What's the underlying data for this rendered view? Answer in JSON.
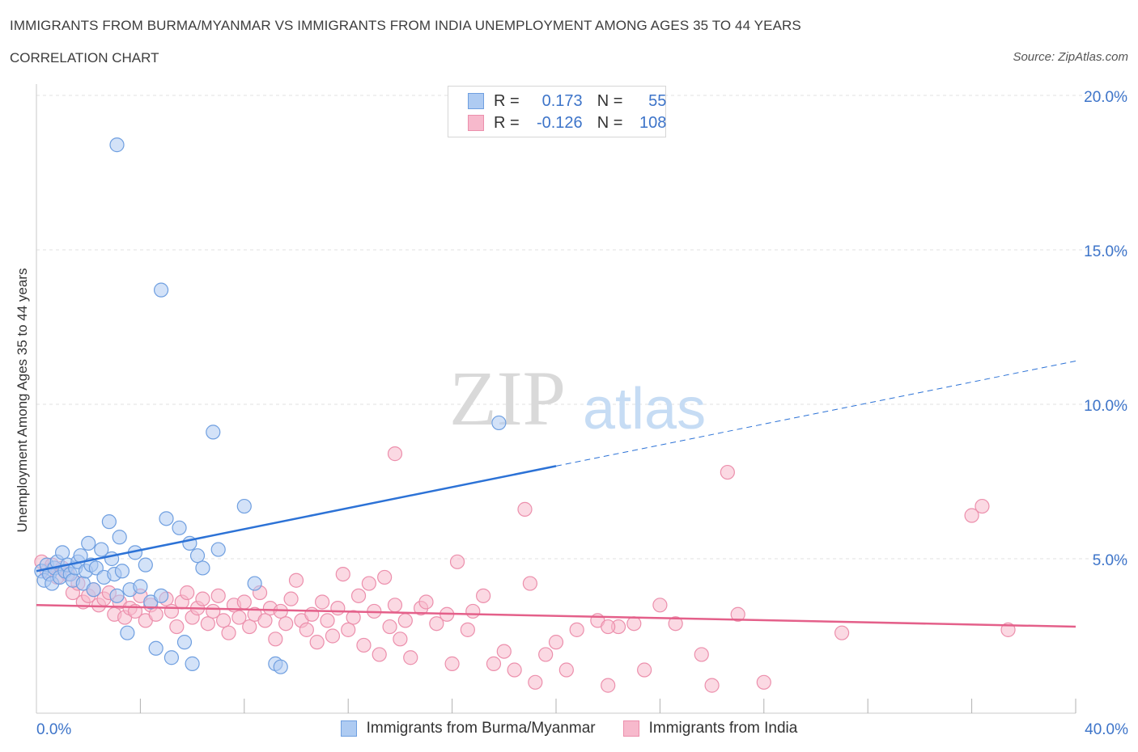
{
  "header": {
    "title": "IMMIGRANTS FROM BURMA/MYANMAR VS IMMIGRANTS FROM INDIA UNEMPLOYMENT AMONG AGES 35 TO 44 YEARS",
    "subtitle": "CORRELATION CHART",
    "source": "Source: ZipAtlas.com"
  },
  "watermark": {
    "zip": "ZIP",
    "atlas": "atlas"
  },
  "legend": {
    "r_label": "R =",
    "n_label": "N =",
    "rows": [
      {
        "r": "0.173",
        "n": "55"
      },
      {
        "r": "-0.126",
        "n": "108"
      }
    ]
  },
  "colors": {
    "blue_fill": "#aecbf2",
    "blue_stroke": "#6f9fe0",
    "blue_line": "#2c72d6",
    "pink_fill": "#f7b9cc",
    "pink_stroke": "#ec8fac",
    "pink_line": "#e4608a",
    "axis_label": "#3d74c9",
    "grid": "#e2e2e2"
  },
  "chart_data": {
    "type": "scatter",
    "title": "IMMIGRANTS FROM BURMA/MYANMAR VS IMMIGRANTS FROM INDIA UNEMPLOYMENT AMONG AGES 35 TO 44 YEARS",
    "xlabel": "",
    "ylabel": "Unemployment Among Ages 35 to 44 years",
    "xlim": [
      0,
      40
    ],
    "ylim": [
      0,
      20
    ],
    "x_tick_labels": [
      "0.0%",
      "40.0%"
    ],
    "y_ticks": [
      5,
      10,
      15,
      20
    ],
    "y_tick_labels": [
      "5.0%",
      "10.0%",
      "15.0%",
      "20.0%"
    ],
    "grid": true,
    "legend_position": "top-center",
    "series": [
      {
        "name": "Immigrants from Burma/Myanmar",
        "color": "blue",
        "R": 0.173,
        "N": 55,
        "trend": {
          "x": [
            0,
            20
          ],
          "y": [
            4.6,
            8.0
          ],
          "dashed_to": [
            40,
            11.4
          ]
        },
        "points": [
          [
            0.2,
            4.6
          ],
          [
            0.3,
            4.3
          ],
          [
            0.4,
            4.8
          ],
          [
            0.5,
            4.5
          ],
          [
            0.6,
            4.2
          ],
          [
            0.7,
            4.7
          ],
          [
            0.8,
            4.9
          ],
          [
            0.9,
            4.4
          ],
          [
            1.0,
            5.2
          ],
          [
            1.1,
            4.6
          ],
          [
            1.2,
            4.8
          ],
          [
            1.3,
            4.5
          ],
          [
            1.4,
            4.3
          ],
          [
            1.5,
            4.7
          ],
          [
            1.6,
            4.9
          ],
          [
            1.7,
            5.1
          ],
          [
            1.8,
            4.2
          ],
          [
            1.9,
            4.6
          ],
          [
            2.0,
            5.5
          ],
          [
            2.1,
            4.8
          ],
          [
            2.2,
            4.0
          ],
          [
            2.3,
            4.7
          ],
          [
            2.5,
            5.3
          ],
          [
            2.6,
            4.4
          ],
          [
            2.8,
            6.2
          ],
          [
            2.9,
            5.0
          ],
          [
            3.0,
            4.5
          ],
          [
            3.1,
            3.8
          ],
          [
            3.2,
            5.7
          ],
          [
            3.3,
            4.6
          ],
          [
            3.5,
            2.6
          ],
          [
            3.6,
            4.0
          ],
          [
            3.8,
            5.2
          ],
          [
            4.0,
            4.1
          ],
          [
            4.2,
            4.8
          ],
          [
            4.4,
            3.6
          ],
          [
            4.6,
            2.1
          ],
          [
            4.8,
            3.8
          ],
          [
            5.0,
            6.3
          ],
          [
            5.2,
            1.8
          ],
          [
            5.5,
            6.0
          ],
          [
            5.7,
            2.3
          ],
          [
            5.9,
            5.5
          ],
          [
            6.0,
            1.6
          ],
          [
            6.2,
            5.1
          ],
          [
            6.4,
            4.7
          ],
          [
            6.8,
            9.1
          ],
          [
            7.0,
            5.3
          ],
          [
            8.0,
            6.7
          ],
          [
            8.4,
            4.2
          ],
          [
            9.2,
            1.6
          ],
          [
            9.4,
            1.5
          ],
          [
            17.8,
            9.4
          ],
          [
            3.1,
            18.4
          ],
          [
            4.8,
            13.7
          ]
        ]
      },
      {
        "name": "Immigrants from India",
        "color": "pink",
        "R": -0.126,
        "N": 108,
        "trend": {
          "x": [
            0,
            40
          ],
          "y": [
            3.5,
            2.8
          ]
        },
        "points": [
          [
            0.2,
            4.9
          ],
          [
            0.4,
            4.6
          ],
          [
            0.6,
            4.8
          ],
          [
            0.8,
            4.4
          ],
          [
            1.0,
            4.7
          ],
          [
            1.2,
            4.5
          ],
          [
            1.4,
            3.9
          ],
          [
            1.6,
            4.2
          ],
          [
            1.8,
            3.6
          ],
          [
            2.0,
            3.8
          ],
          [
            2.2,
            4.0
          ],
          [
            2.4,
            3.5
          ],
          [
            2.6,
            3.7
          ],
          [
            2.8,
            3.9
          ],
          [
            3.0,
            3.2
          ],
          [
            3.2,
            3.6
          ],
          [
            3.4,
            3.1
          ],
          [
            3.6,
            3.4
          ],
          [
            3.8,
            3.3
          ],
          [
            4.0,
            3.8
          ],
          [
            4.2,
            3.0
          ],
          [
            4.4,
            3.5
          ],
          [
            4.6,
            3.2
          ],
          [
            5.0,
            3.7
          ],
          [
            5.2,
            3.3
          ],
          [
            5.4,
            2.8
          ],
          [
            5.6,
            3.6
          ],
          [
            5.8,
            3.9
          ],
          [
            6.0,
            3.1
          ],
          [
            6.2,
            3.4
          ],
          [
            6.4,
            3.7
          ],
          [
            6.6,
            2.9
          ],
          [
            6.8,
            3.3
          ],
          [
            7.0,
            3.8
          ],
          [
            7.2,
            3.0
          ],
          [
            7.4,
            2.6
          ],
          [
            7.6,
            3.5
          ],
          [
            7.8,
            3.1
          ],
          [
            8.0,
            3.6
          ],
          [
            8.2,
            2.8
          ],
          [
            8.4,
            3.2
          ],
          [
            8.6,
            3.9
          ],
          [
            8.8,
            3.0
          ],
          [
            9.0,
            3.4
          ],
          [
            9.2,
            2.4
          ],
          [
            9.4,
            3.3
          ],
          [
            9.6,
            2.9
          ],
          [
            9.8,
            3.7
          ],
          [
            10.0,
            4.3
          ],
          [
            10.2,
            3.0
          ],
          [
            10.4,
            2.7
          ],
          [
            10.6,
            3.2
          ],
          [
            10.8,
            2.3
          ],
          [
            11.0,
            3.6
          ],
          [
            11.2,
            3.0
          ],
          [
            11.4,
            2.5
          ],
          [
            11.6,
            3.4
          ],
          [
            11.8,
            4.5
          ],
          [
            12.0,
            2.7
          ],
          [
            12.2,
            3.1
          ],
          [
            12.4,
            3.8
          ],
          [
            12.6,
            2.2
          ],
          [
            12.8,
            4.2
          ],
          [
            13.0,
            3.3
          ],
          [
            13.2,
            1.9
          ],
          [
            13.4,
            4.4
          ],
          [
            13.6,
            2.8
          ],
          [
            13.8,
            3.5
          ],
          [
            14.0,
            2.4
          ],
          [
            14.2,
            3.0
          ],
          [
            14.4,
            1.8
          ],
          [
            14.8,
            3.4
          ],
          [
            15.0,
            3.6
          ],
          [
            15.4,
            2.9
          ],
          [
            15.8,
            3.2
          ],
          [
            16.0,
            1.6
          ],
          [
            16.2,
            4.9
          ],
          [
            16.6,
            2.7
          ],
          [
            16.8,
            3.3
          ],
          [
            17.2,
            3.8
          ],
          [
            17.6,
            1.6
          ],
          [
            18.0,
            2.0
          ],
          [
            18.4,
            1.4
          ],
          [
            18.8,
            6.6
          ],
          [
            19.0,
            4.2
          ],
          [
            19.2,
            1.0
          ],
          [
            19.6,
            1.9
          ],
          [
            20.0,
            2.3
          ],
          [
            20.4,
            1.4
          ],
          [
            20.8,
            2.7
          ],
          [
            21.6,
            3.0
          ],
          [
            22.0,
            0.9
          ],
          [
            22.4,
            2.8
          ],
          [
            23.0,
            2.9
          ],
          [
            23.4,
            1.4
          ],
          [
            24.0,
            3.5
          ],
          [
            24.6,
            2.9
          ],
          [
            25.6,
            1.9
          ],
          [
            26.0,
            0.9
          ],
          [
            27.0,
            3.2
          ],
          [
            28.0,
            1.0
          ],
          [
            31.0,
            2.6
          ],
          [
            37.4,
            2.7
          ],
          [
            36.4,
            6.7
          ],
          [
            36.0,
            6.4
          ],
          [
            26.6,
            7.8
          ],
          [
            13.8,
            8.4
          ],
          [
            22.0,
            2.8
          ]
        ]
      }
    ]
  }
}
